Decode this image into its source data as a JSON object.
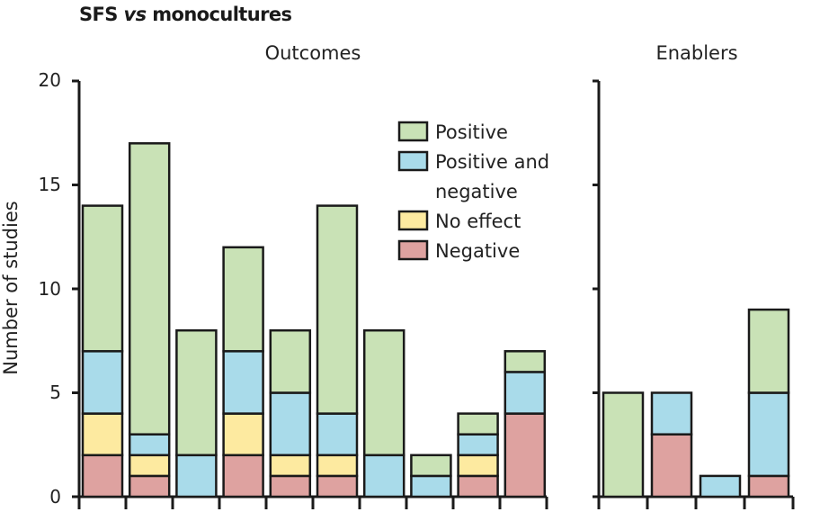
{
  "chart_data": {
    "type": "stacked-bar",
    "title": "SFS vs monocultures",
    "title_prefix": "SFS ",
    "title_italic": "vs",
    "title_suffix": " monocultures",
    "ylabel": "Number of studies",
    "ylim": [
      0,
      20
    ],
    "yticks": [
      "0",
      "5",
      "10",
      "15",
      "20"
    ],
    "legend_position": "top-right of Outcomes panel",
    "series": [
      {
        "name": "Negative",
        "color": "#dea2a0"
      },
      {
        "name": "No effect",
        "color": "#fdeaa0"
      },
      {
        "name": "Positive and negative",
        "color": "#a9dbea"
      },
      {
        "name": "Positive",
        "color": "#c9e2b6"
      }
    ],
    "legend": [
      {
        "label_lines": [
          "Positive"
        ],
        "color": "#c9e2b6"
      },
      {
        "label_lines": [
          "Positive and",
          "negative"
        ],
        "color": "#a9dbea"
      },
      {
        "label_lines": [
          "No effect"
        ],
        "color": "#fdeaa0"
      },
      {
        "label_lines": [
          "Negative"
        ],
        "color": "#dea2a0"
      }
    ],
    "panels": [
      {
        "title": "Outcomes",
        "bars": [
          {
            "Negative": 2,
            "No effect": 2,
            "Positive and negative": 3,
            "Positive": 7
          },
          {
            "Negative": 1,
            "No effect": 1,
            "Positive and negative": 1,
            "Positive": 14
          },
          {
            "Negative": 0,
            "No effect": 0,
            "Positive and negative": 2,
            "Positive": 6
          },
          {
            "Negative": 2,
            "No effect": 2,
            "Positive and negative": 3,
            "Positive": 5
          },
          {
            "Negative": 1,
            "No effect": 1,
            "Positive and negative": 3,
            "Positive": 3
          },
          {
            "Negative": 1,
            "No effect": 1,
            "Positive and negative": 2,
            "Positive": 10
          },
          {
            "Negative": 0,
            "No effect": 0,
            "Positive and negative": 2,
            "Positive": 6
          },
          {
            "Negative": 0,
            "No effect": 0,
            "Positive and negative": 1,
            "Positive": 1
          },
          {
            "Negative": 1,
            "No effect": 1,
            "Positive and negative": 1,
            "Positive": 1
          },
          {
            "Negative": 4,
            "No effect": 0,
            "Positive and negative": 2,
            "Positive": 1
          }
        ]
      },
      {
        "title": "Enablers",
        "bars": [
          {
            "Negative": 0,
            "No effect": 0,
            "Positive and negative": 0,
            "Positive": 5
          },
          {
            "Negative": 3,
            "No effect": 0,
            "Positive and negative": 2,
            "Positive": 0
          },
          {
            "Negative": 0,
            "No effect": 0,
            "Positive and negative": 1,
            "Positive": 0
          },
          {
            "Negative": 1,
            "No effect": 0,
            "Positive and negative": 4,
            "Positive": 4
          }
        ]
      }
    ]
  }
}
